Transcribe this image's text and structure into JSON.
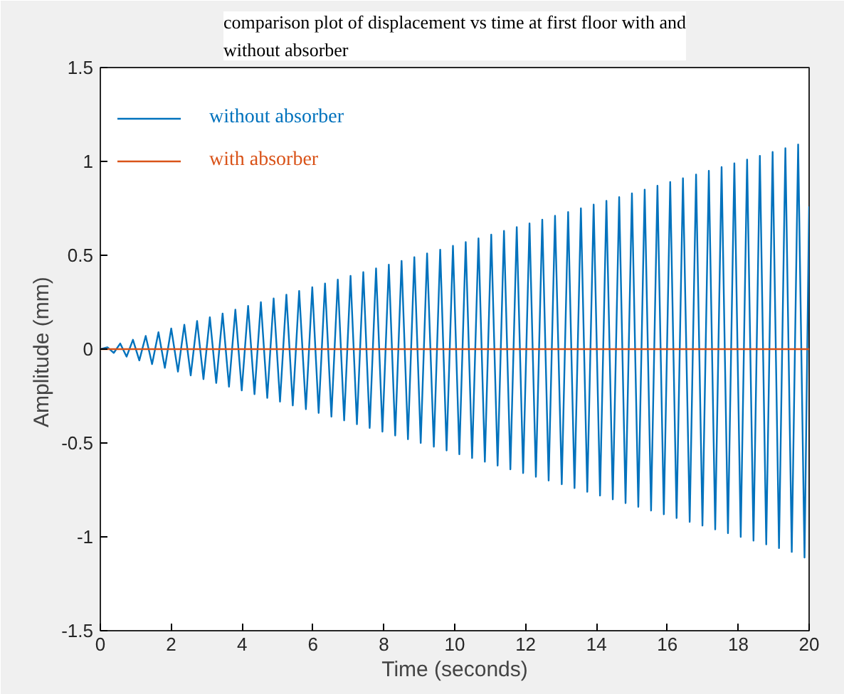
{
  "chart_data": {
    "type": "line",
    "title": "comparison plot of displacement vs time at first floor with and without absorber",
    "xlabel": "Time (seconds)",
    "ylabel": "Amplitude  (mm)",
    "xlim": [
      0,
      20
    ],
    "ylim": [
      -1.5,
      1.5
    ],
    "xticks": [
      0,
      2,
      4,
      6,
      8,
      10,
      12,
      14,
      16,
      18,
      20
    ],
    "yticks": [
      -1.5,
      -1,
      -0.5,
      0,
      0.5,
      1,
      1.5
    ],
    "grid": false,
    "legend": "top left",
    "line_style": "solid",
    "marker": "none",
    "series": [
      {
        "name": "without absorber",
        "color": "#0072bd",
        "x": [
          0,
          0.2,
          0.38,
          0.56,
          0.74,
          0.92,
          1.1,
          1.28,
          1.46,
          1.64,
          1.82,
          2.0,
          2.19,
          2.37,
          2.55,
          2.73,
          2.91,
          3.09,
          3.27,
          3.45,
          3.63,
          3.81,
          3.99,
          4.17,
          4.35,
          4.53,
          4.71,
          4.89,
          5.07,
          5.25,
          5.43,
          5.61,
          5.8,
          5.98,
          6.16,
          6.34,
          6.52,
          6.7,
          6.88,
          7.06,
          7.24,
          7.42,
          7.6,
          7.78,
          7.96,
          8.14,
          8.32,
          8.5,
          8.68,
          8.86,
          9.04,
          9.22,
          9.41,
          9.59,
          9.77,
          9.95,
          10.13,
          10.31,
          10.49,
          10.67,
          10.85,
          11.03,
          11.21,
          11.39,
          11.57,
          11.75,
          11.93,
          12.11,
          12.29,
          12.47,
          12.65,
          12.83,
          13.02,
          13.2,
          13.38,
          13.56,
          13.74,
          13.92,
          14.1,
          14.28,
          14.46,
          14.64,
          14.82,
          15.0,
          15.18,
          15.36,
          15.54,
          15.72,
          15.9,
          16.08,
          16.26,
          16.44,
          16.63,
          16.81,
          16.99,
          17.17,
          17.35,
          17.53,
          17.71,
          17.89,
          18.07,
          18.25,
          18.43,
          18.61,
          18.79,
          18.97,
          19.15,
          19.33,
          19.51,
          19.69,
          19.87,
          20.0
        ],
        "values": [
          0,
          0.01,
          -0.02,
          0.03,
          -0.04,
          0.05,
          -0.06,
          0.07,
          -0.08,
          0.09,
          -0.1,
          0.11,
          -0.12,
          0.13,
          -0.14,
          0.15,
          -0.16,
          0.17,
          -0.18,
          0.19,
          -0.2,
          0.21,
          -0.22,
          0.23,
          -0.24,
          0.25,
          -0.26,
          0.27,
          -0.28,
          0.29,
          -0.3,
          0.31,
          -0.32,
          0.33,
          -0.34,
          0.35,
          -0.36,
          0.37,
          -0.38,
          0.39,
          -0.4,
          0.41,
          -0.42,
          0.43,
          -0.44,
          0.45,
          -0.46,
          0.47,
          -0.48,
          0.49,
          -0.5,
          0.51,
          -0.52,
          0.53,
          -0.54,
          0.55,
          -0.56,
          0.57,
          -0.58,
          0.59,
          -0.6,
          0.61,
          -0.62,
          0.63,
          -0.64,
          0.65,
          -0.66,
          0.67,
          -0.68,
          0.69,
          -0.7,
          0.71,
          -0.72,
          0.73,
          -0.74,
          0.75,
          -0.76,
          0.77,
          -0.78,
          0.79,
          -0.8,
          0.81,
          -0.82,
          0.83,
          -0.84,
          0.85,
          -0.86,
          0.87,
          -0.88,
          0.89,
          -0.9,
          0.91,
          -0.92,
          0.93,
          -0.94,
          0.95,
          -0.96,
          0.97,
          -0.98,
          0.99,
          -1.0,
          1.01,
          -1.02,
          1.03,
          -1.04,
          1.05,
          -1.06,
          1.07,
          -1.08,
          1.09,
          -1.11,
          0.76
        ]
      },
      {
        "name": "with absorber",
        "color": "#d95319",
        "x": [
          0,
          2,
          4,
          6,
          8,
          10,
          12,
          14,
          16,
          18,
          20
        ],
        "values": [
          0,
          0,
          0,
          0,
          0,
          0,
          0,
          0,
          0,
          0,
          0
        ]
      }
    ]
  }
}
